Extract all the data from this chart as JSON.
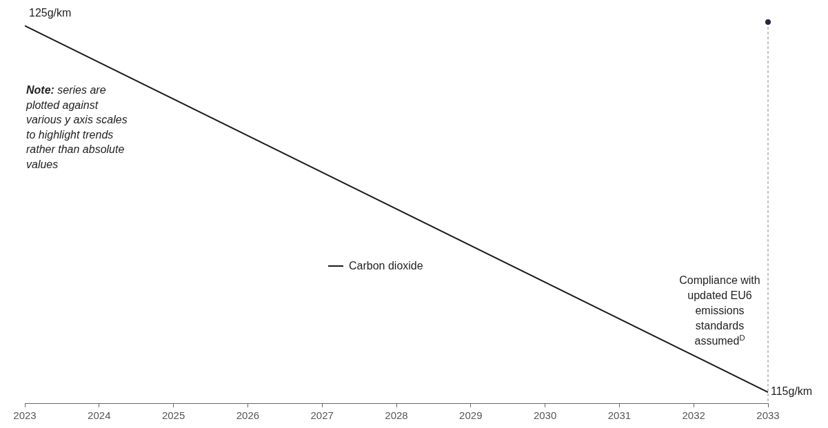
{
  "chart_data": {
    "type": "line",
    "x": [
      2023,
      2033
    ],
    "series": [
      {
        "name": "Carbon dioxide",
        "color": "#1a1a1a",
        "values": [
          125,
          115
        ],
        "value_labels": [
          "125g/km",
          "115g/km"
        ]
      }
    ],
    "xlim": [
      2023,
      2033
    ],
    "xticks": [
      2023,
      2024,
      2025,
      2026,
      2027,
      2028,
      2029,
      2030,
      2031,
      2032,
      2033
    ],
    "ylim": [
      114.7,
      125.1
    ],
    "tick_labels": "x",
    "grid": false,
    "legend": "center",
    "marker": "none",
    "line_style": "solid",
    "ref_lines": [
      {
        "axis": "x",
        "value": 2033,
        "label": "Compliance with updated EU6 emissions standards assumed$^{D}$",
        "color": "#888888",
        "line_style": "dashed"
      }
    ],
    "annotations": [
      "Note: series are plotted against various y axis scales to highlight trends rather than absolute values"
    ]
  }
}
